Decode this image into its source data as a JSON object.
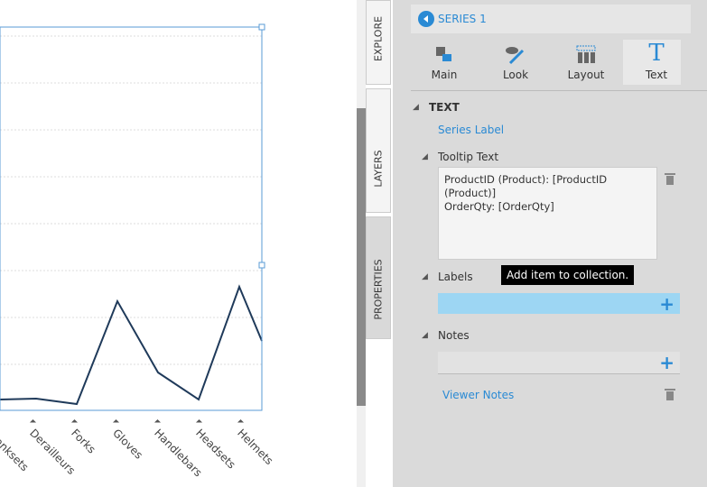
{
  "chart": {
    "categories": [
      "Cranksets",
      "Derailleurs",
      "Forks",
      "Gloves",
      "Handlebars",
      "Headsets",
      "Helmets"
    ]
  },
  "tabs": [
    "EXPLORE",
    "LAYERS",
    "PROPERTIES"
  ],
  "panel": {
    "header": "SERIES 1",
    "toolbar": [
      "Main",
      "Look",
      "Layout",
      "Text"
    ],
    "section": "TEXT",
    "series_label": "Series Label",
    "tooltip_text": {
      "label": "Tooltip Text",
      "content": "ProductID (Product): [ProductID (Product)]\nOrderQty: [OrderQty]"
    },
    "labels": {
      "label": "Labels",
      "hint": "Add item to collection."
    },
    "notes": {
      "label": "Notes",
      "viewer_notes": "Viewer Notes"
    }
  }
}
